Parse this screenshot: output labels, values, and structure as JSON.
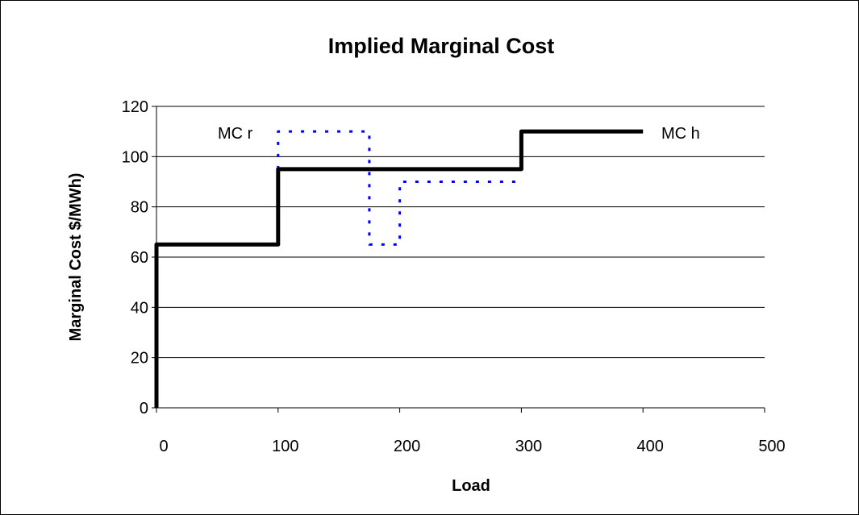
{
  "chart_data": {
    "type": "line",
    "title": "Implied Marginal Cost",
    "xlabel": "Load",
    "ylabel": "Marginal Cost $/MWh)",
    "xlim": [
      0,
      500
    ],
    "ylim": [
      0,
      120
    ],
    "x_ticks": [
      "0",
      "100",
      "200",
      "300",
      "400",
      "500"
    ],
    "y_ticks": [
      "0",
      "20",
      "40",
      "60",
      "80",
      "100",
      "120"
    ],
    "grid": "horizontal",
    "colors": {
      "mc_h": "#000000",
      "mc_r": "#0000ff",
      "gridline": "#000000"
    },
    "series": [
      {
        "name": "MC h",
        "style": "solid",
        "x": [
          0,
          0,
          100,
          100,
          300,
          300,
          400
        ],
        "y": [
          0,
          65,
          65,
          95,
          95,
          110,
          110
        ]
      },
      {
        "name": "MC r",
        "style": "dotted",
        "x": [
          100,
          100,
          175,
          175,
          200,
          200,
          300
        ],
        "y": [
          95,
          110,
          110,
          65,
          65,
          90,
          90
        ]
      }
    ]
  }
}
